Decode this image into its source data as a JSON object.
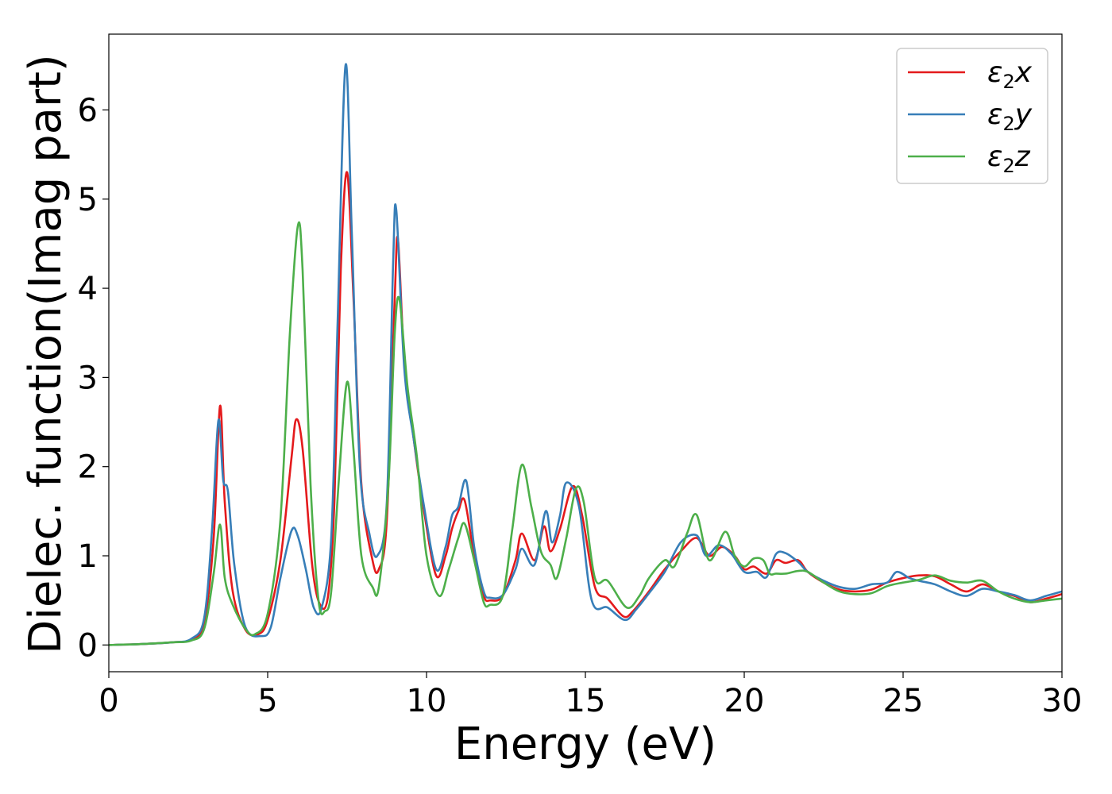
{
  "chart_data": {
    "type": "line",
    "xlabel": "Energy (eV)",
    "ylabel": "Dielec. function(Imag part)",
    "xlim": [
      0,
      30
    ],
    "ylim": [
      -0.3,
      6.85
    ],
    "xticks": [
      0,
      5,
      10,
      15,
      20,
      25,
      30
    ],
    "yticks": [
      0,
      1,
      2,
      3,
      4,
      5,
      6
    ],
    "grid": false,
    "legend_position": "top-right",
    "series": [
      {
        "name": "ε2x",
        "legend": {
          "base": "ε",
          "sub": "2",
          "suffix": "x"
        },
        "color": "#e41a1c",
        "points": [
          [
            0,
            0
          ],
          [
            1,
            0.01
          ],
          [
            2,
            0.03
          ],
          [
            2.6,
            0.06
          ],
          [
            3.0,
            0.25
          ],
          [
            3.3,
            1.2
          ],
          [
            3.5,
            2.68
          ],
          [
            3.65,
            1.6
          ],
          [
            3.9,
            0.6
          ],
          [
            4.3,
            0.17
          ],
          [
            4.7,
            0.12
          ],
          [
            5.0,
            0.28
          ],
          [
            5.4,
            0.95
          ],
          [
            5.75,
            2.1
          ],
          [
            5.9,
            2.53
          ],
          [
            6.1,
            2.2
          ],
          [
            6.4,
            0.9
          ],
          [
            6.65,
            0.45
          ],
          [
            6.9,
            0.55
          ],
          [
            7.1,
            1.6
          ],
          [
            7.3,
            4.2
          ],
          [
            7.5,
            5.3
          ],
          [
            7.7,
            3.9
          ],
          [
            7.95,
            1.8
          ],
          [
            8.3,
            0.95
          ],
          [
            8.5,
            0.85
          ],
          [
            8.75,
            1.4
          ],
          [
            9.0,
            3.9
          ],
          [
            9.1,
            4.55
          ],
          [
            9.3,
            3.2
          ],
          [
            9.6,
            2.3
          ],
          [
            9.9,
            1.55
          ],
          [
            10.3,
            0.78
          ],
          [
            10.6,
            1.0
          ],
          [
            10.8,
            1.3
          ],
          [
            11.0,
            1.5
          ],
          [
            11.2,
            1.62
          ],
          [
            11.5,
            1.0
          ],
          [
            11.8,
            0.55
          ],
          [
            12.0,
            0.5
          ],
          [
            12.4,
            0.55
          ],
          [
            12.8,
            0.95
          ],
          [
            13.0,
            1.25
          ],
          [
            13.4,
            0.95
          ],
          [
            13.7,
            1.33
          ],
          [
            13.9,
            1.05
          ],
          [
            14.2,
            1.3
          ],
          [
            14.6,
            1.78
          ],
          [
            14.9,
            1.45
          ],
          [
            15.3,
            0.65
          ],
          [
            15.7,
            0.52
          ],
          [
            16.2,
            0.32
          ],
          [
            16.5,
            0.38
          ],
          [
            17.0,
            0.6
          ],
          [
            17.5,
            0.85
          ],
          [
            18.0,
            1.05
          ],
          [
            18.5,
            1.2
          ],
          [
            18.9,
            1.0
          ],
          [
            19.3,
            1.1
          ],
          [
            19.7,
            1.0
          ],
          [
            20.0,
            0.85
          ],
          [
            20.3,
            0.88
          ],
          [
            20.7,
            0.8
          ],
          [
            21.0,
            0.95
          ],
          [
            21.3,
            0.92
          ],
          [
            21.7,
            0.95
          ],
          [
            22.0,
            0.82
          ],
          [
            22.5,
            0.7
          ],
          [
            23.0,
            0.62
          ],
          [
            23.5,
            0.6
          ],
          [
            24.0,
            0.62
          ],
          [
            24.5,
            0.7
          ],
          [
            25.0,
            0.75
          ],
          [
            25.5,
            0.78
          ],
          [
            26.0,
            0.77
          ],
          [
            26.5,
            0.68
          ],
          [
            27.0,
            0.6
          ],
          [
            27.5,
            0.68
          ],
          [
            28.0,
            0.6
          ],
          [
            28.5,
            0.55
          ],
          [
            29.0,
            0.48
          ],
          [
            29.5,
            0.52
          ],
          [
            30.0,
            0.57
          ]
        ]
      },
      {
        "name": "ε2y",
        "legend": {
          "base": "ε",
          "sub": "2",
          "suffix": "y"
        },
        "color": "#377eb8",
        "points": [
          [
            0,
            0
          ],
          [
            1,
            0.01
          ],
          [
            2,
            0.03
          ],
          [
            2.6,
            0.07
          ],
          [
            3.0,
            0.3
          ],
          [
            3.25,
            1.3
          ],
          [
            3.45,
            2.52
          ],
          [
            3.6,
            1.85
          ],
          [
            3.75,
            1.72
          ],
          [
            3.95,
            0.9
          ],
          [
            4.3,
            0.2
          ],
          [
            4.8,
            0.1
          ],
          [
            5.1,
            0.2
          ],
          [
            5.4,
            0.75
          ],
          [
            5.75,
            1.28
          ],
          [
            5.95,
            1.22
          ],
          [
            6.2,
            0.85
          ],
          [
            6.45,
            0.42
          ],
          [
            6.7,
            0.42
          ],
          [
            7.0,
            1.2
          ],
          [
            7.2,
            3.6
          ],
          [
            7.45,
            6.5
          ],
          [
            7.65,
            4.6
          ],
          [
            7.9,
            2.0
          ],
          [
            8.2,
            1.25
          ],
          [
            8.45,
            1.0
          ],
          [
            8.75,
            1.6
          ],
          [
            8.95,
            4.3
          ],
          [
            9.05,
            4.87
          ],
          [
            9.3,
            3.1
          ],
          [
            9.6,
            2.3
          ],
          [
            9.9,
            1.6
          ],
          [
            10.3,
            0.85
          ],
          [
            10.6,
            1.1
          ],
          [
            10.8,
            1.45
          ],
          [
            11.0,
            1.55
          ],
          [
            11.25,
            1.84
          ],
          [
            11.5,
            1.1
          ],
          [
            11.8,
            0.6
          ],
          [
            12.0,
            0.53
          ],
          [
            12.4,
            0.56
          ],
          [
            12.8,
            0.85
          ],
          [
            13.0,
            1.08
          ],
          [
            13.4,
            0.9
          ],
          [
            13.75,
            1.5
          ],
          [
            13.95,
            1.15
          ],
          [
            14.2,
            1.45
          ],
          [
            14.4,
            1.82
          ],
          [
            14.8,
            1.55
          ],
          [
            15.2,
            0.5
          ],
          [
            15.7,
            0.42
          ],
          [
            16.25,
            0.28
          ],
          [
            16.6,
            0.4
          ],
          [
            17.0,
            0.58
          ],
          [
            17.5,
            0.82
          ],
          [
            18.0,
            1.15
          ],
          [
            18.5,
            1.23
          ],
          [
            18.8,
            1.0
          ],
          [
            19.2,
            1.12
          ],
          [
            19.6,
            1.02
          ],
          [
            20.0,
            0.82
          ],
          [
            20.4,
            0.82
          ],
          [
            20.7,
            0.76
          ],
          [
            21.0,
            1.02
          ],
          [
            21.3,
            1.03
          ],
          [
            21.7,
            0.93
          ],
          [
            22.0,
            0.82
          ],
          [
            22.5,
            0.72
          ],
          [
            23.0,
            0.65
          ],
          [
            23.5,
            0.63
          ],
          [
            24.0,
            0.68
          ],
          [
            24.5,
            0.7
          ],
          [
            24.8,
            0.82
          ],
          [
            25.2,
            0.75
          ],
          [
            25.5,
            0.72
          ],
          [
            26.0,
            0.68
          ],
          [
            26.5,
            0.6
          ],
          [
            27.0,
            0.55
          ],
          [
            27.5,
            0.63
          ],
          [
            28.0,
            0.6
          ],
          [
            28.5,
            0.56
          ],
          [
            29.0,
            0.5
          ],
          [
            29.5,
            0.55
          ],
          [
            30.0,
            0.6
          ]
        ]
      },
      {
        "name": "ε2z",
        "legend": {
          "base": "ε",
          "sub": "2",
          "suffix": "z"
        },
        "color": "#4daf4a",
        "points": [
          [
            0,
            0
          ],
          [
            1,
            0.01
          ],
          [
            2,
            0.03
          ],
          [
            2.6,
            0.05
          ],
          [
            3.0,
            0.18
          ],
          [
            3.3,
            0.8
          ],
          [
            3.5,
            1.35
          ],
          [
            3.65,
            0.75
          ],
          [
            3.9,
            0.45
          ],
          [
            4.3,
            0.18
          ],
          [
            4.6,
            0.12
          ],
          [
            5.0,
            0.35
          ],
          [
            5.4,
            1.4
          ],
          [
            5.7,
            3.5
          ],
          [
            5.95,
            4.7
          ],
          [
            6.1,
            4.2
          ],
          [
            6.35,
            1.8
          ],
          [
            6.6,
            0.5
          ],
          [
            6.8,
            0.38
          ],
          [
            7.0,
            0.6
          ],
          [
            7.25,
            1.9
          ],
          [
            7.5,
            2.95
          ],
          [
            7.7,
            2.2
          ],
          [
            7.95,
            1.0
          ],
          [
            8.3,
            0.65
          ],
          [
            8.5,
            0.65
          ],
          [
            8.8,
            1.8
          ],
          [
            9.0,
            3.5
          ],
          [
            9.15,
            3.87
          ],
          [
            9.4,
            2.9
          ],
          [
            9.7,
            2.1
          ],
          [
            10.0,
            1.0
          ],
          [
            10.4,
            0.55
          ],
          [
            10.7,
            0.85
          ],
          [
            11.0,
            1.2
          ],
          [
            11.2,
            1.36
          ],
          [
            11.5,
            0.95
          ],
          [
            11.8,
            0.48
          ],
          [
            12.0,
            0.45
          ],
          [
            12.4,
            0.55
          ],
          [
            12.7,
            1.3
          ],
          [
            13.0,
            2.02
          ],
          [
            13.3,
            1.55
          ],
          [
            13.6,
            1.05
          ],
          [
            13.9,
            0.9
          ],
          [
            14.1,
            0.75
          ],
          [
            14.4,
            1.2
          ],
          [
            14.7,
            1.75
          ],
          [
            14.95,
            1.6
          ],
          [
            15.3,
            0.75
          ],
          [
            15.7,
            0.72
          ],
          [
            16.3,
            0.42
          ],
          [
            16.7,
            0.55
          ],
          [
            17.0,
            0.75
          ],
          [
            17.5,
            0.95
          ],
          [
            17.8,
            0.88
          ],
          [
            18.2,
            1.25
          ],
          [
            18.5,
            1.46
          ],
          [
            18.9,
            0.95
          ],
          [
            19.4,
            1.27
          ],
          [
            19.7,
            1.0
          ],
          [
            20.0,
            0.88
          ],
          [
            20.3,
            0.97
          ],
          [
            20.6,
            0.95
          ],
          [
            20.8,
            0.8
          ],
          [
            21.0,
            0.8
          ],
          [
            21.3,
            0.8
          ],
          [
            21.7,
            0.83
          ],
          [
            22.0,
            0.82
          ],
          [
            22.5,
            0.7
          ],
          [
            23.0,
            0.6
          ],
          [
            23.5,
            0.57
          ],
          [
            24.0,
            0.58
          ],
          [
            24.5,
            0.66
          ],
          [
            25.0,
            0.7
          ],
          [
            25.5,
            0.73
          ],
          [
            26.0,
            0.78
          ],
          [
            26.5,
            0.72
          ],
          [
            27.0,
            0.7
          ],
          [
            27.5,
            0.72
          ],
          [
            28.0,
            0.6
          ],
          [
            28.5,
            0.52
          ],
          [
            29.0,
            0.48
          ],
          [
            29.5,
            0.5
          ],
          [
            30.0,
            0.52
          ]
        ]
      }
    ]
  }
}
